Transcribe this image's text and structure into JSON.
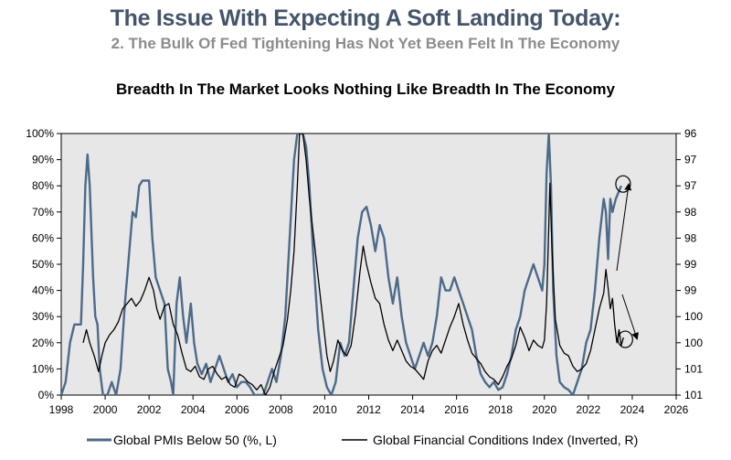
{
  "header": {
    "title": "The Issue With Expecting A Soft Landing Today:",
    "subtitle": "2. The Bulk Of Fed Tightening Has Not Yet Been Felt In The Economy"
  },
  "colors": {
    "pmi": "#4d6a8a",
    "fci": "#000000",
    "plot_bg": "#e7e7e7",
    "title": "#44546a",
    "subtitle": "#8c8c8c"
  },
  "chart_data": {
    "type": "line",
    "title": "Breadth In The Market Looks Nothing Like Breadth In The Economy",
    "x_ticks": [
      "1998",
      "2000",
      "2002",
      "2004",
      "2006",
      "2008",
      "2010",
      "2012",
      "2014",
      "2016",
      "2018",
      "2020",
      "2022",
      "2024",
      "2026"
    ],
    "xlim": [
      1998,
      2026
    ],
    "y_left_ticks": [
      "0%",
      "10%",
      "20%",
      "30%",
      "40%",
      "50%",
      "60%",
      "70%",
      "80%",
      "90%",
      "100%"
    ],
    "ylim_left": [
      0,
      100
    ],
    "y_right_ticks": [
      "101",
      "101",
      "100",
      "100",
      "99",
      "99",
      "98",
      "98",
      "97",
      "97",
      "96"
    ],
    "ylim_right_inverted": [
      101.25,
      96.25
    ],
    "series": [
      {
        "name": "Global PMIs Below 50 (%, L)",
        "axis": "left",
        "points": [
          [
            1998.0,
            0
          ],
          [
            1998.2,
            5
          ],
          [
            1998.4,
            20
          ],
          [
            1998.6,
            27
          ],
          [
            1998.9,
            27
          ],
          [
            1999.0,
            50
          ],
          [
            1999.1,
            80
          ],
          [
            1999.2,
            92
          ],
          [
            1999.3,
            80
          ],
          [
            1999.45,
            45
          ],
          [
            1999.55,
            30
          ],
          [
            1999.65,
            27
          ],
          [
            1999.75,
            10
          ],
          [
            1999.9,
            0
          ],
          [
            2000.1,
            0
          ],
          [
            2000.3,
            5
          ],
          [
            2000.5,
            0
          ],
          [
            2000.7,
            10
          ],
          [
            2000.9,
            35
          ],
          [
            2001.1,
            55
          ],
          [
            2001.25,
            70
          ],
          [
            2001.4,
            68
          ],
          [
            2001.55,
            80
          ],
          [
            2001.7,
            82
          ],
          [
            2002.0,
            82
          ],
          [
            2002.15,
            60
          ],
          [
            2002.3,
            45
          ],
          [
            2002.5,
            40
          ],
          [
            2002.7,
            35
          ],
          [
            2002.85,
            10
          ],
          [
            2003.0,
            5
          ],
          [
            2003.1,
            0
          ],
          [
            2003.25,
            35
          ],
          [
            2003.4,
            45
          ],
          [
            2003.55,
            30
          ],
          [
            2003.7,
            20
          ],
          [
            2003.9,
            35
          ],
          [
            2004.05,
            20
          ],
          [
            2004.2,
            12
          ],
          [
            2004.4,
            8
          ],
          [
            2004.6,
            12
          ],
          [
            2004.8,
            5
          ],
          [
            2005.0,
            10
          ],
          [
            2005.2,
            15
          ],
          [
            2005.4,
            10
          ],
          [
            2005.6,
            5
          ],
          [
            2005.8,
            8
          ],
          [
            2006.0,
            3
          ],
          [
            2006.2,
            5
          ],
          [
            2006.4,
            5
          ],
          [
            2006.6,
            3
          ],
          [
            2006.8,
            0
          ],
          [
            2007.0,
            0
          ],
          [
            2007.2,
            0
          ],
          [
            2007.4,
            5
          ],
          [
            2007.6,
            10
          ],
          [
            2007.8,
            5
          ],
          [
            2008.0,
            15
          ],
          [
            2008.2,
            30
          ],
          [
            2008.4,
            60
          ],
          [
            2008.6,
            90
          ],
          [
            2008.75,
            100
          ],
          [
            2009.0,
            100
          ],
          [
            2009.15,
            95
          ],
          [
            2009.3,
            80
          ],
          [
            2009.5,
            50
          ],
          [
            2009.7,
            25
          ],
          [
            2009.9,
            10
          ],
          [
            2010.1,
            3
          ],
          [
            2010.3,
            0
          ],
          [
            2010.5,
            5
          ],
          [
            2010.7,
            20
          ],
          [
            2010.9,
            15
          ],
          [
            2011.1,
            20
          ],
          [
            2011.3,
            40
          ],
          [
            2011.5,
            60
          ],
          [
            2011.7,
            70
          ],
          [
            2011.9,
            72
          ],
          [
            2012.1,
            65
          ],
          [
            2012.3,
            55
          ],
          [
            2012.5,
            65
          ],
          [
            2012.7,
            60
          ],
          [
            2012.9,
            45
          ],
          [
            2013.1,
            35
          ],
          [
            2013.3,
            45
          ],
          [
            2013.5,
            30
          ],
          [
            2013.7,
            20
          ],
          [
            2013.9,
            15
          ],
          [
            2014.1,
            10
          ],
          [
            2014.3,
            15
          ],
          [
            2014.5,
            20
          ],
          [
            2014.7,
            15
          ],
          [
            2014.9,
            20
          ],
          [
            2015.1,
            30
          ],
          [
            2015.3,
            45
          ],
          [
            2015.5,
            40
          ],
          [
            2015.7,
            40
          ],
          [
            2015.9,
            45
          ],
          [
            2016.1,
            40
          ],
          [
            2016.3,
            35
          ],
          [
            2016.5,
            30
          ],
          [
            2016.7,
            25
          ],
          [
            2016.9,
            15
          ],
          [
            2017.1,
            8
          ],
          [
            2017.3,
            5
          ],
          [
            2017.5,
            3
          ],
          [
            2017.7,
            5
          ],
          [
            2017.9,
            2
          ],
          [
            2018.1,
            3
          ],
          [
            2018.3,
            8
          ],
          [
            2018.5,
            15
          ],
          [
            2018.7,
            25
          ],
          [
            2018.9,
            30
          ],
          [
            2019.1,
            40
          ],
          [
            2019.3,
            45
          ],
          [
            2019.5,
            50
          ],
          [
            2019.7,
            45
          ],
          [
            2019.9,
            40
          ],
          [
            2020.0,
            50
          ],
          [
            2020.1,
            85
          ],
          [
            2020.2,
            100
          ],
          [
            2020.3,
            80
          ],
          [
            2020.4,
            40
          ],
          [
            2020.55,
            15
          ],
          [
            2020.7,
            5
          ],
          [
            2020.9,
            3
          ],
          [
            2021.1,
            2
          ],
          [
            2021.3,
            0
          ],
          [
            2021.5,
            5
          ],
          [
            2021.7,
            10
          ],
          [
            2021.9,
            20
          ],
          [
            2022.1,
            25
          ],
          [
            2022.3,
            40
          ],
          [
            2022.5,
            60
          ],
          [
            2022.7,
            75
          ],
          [
            2022.8,
            70
          ],
          [
            2022.9,
            52
          ],
          [
            2023.0,
            75
          ],
          [
            2023.1,
            70
          ],
          [
            2023.25,
            75
          ],
          [
            2023.4,
            78
          ],
          [
            2023.5,
            80
          ]
        ]
      },
      {
        "name": "Global Financial Conditions Index (Inverted, R)",
        "axis": "right",
        "points": [
          [
            1999.0,
            100.25
          ],
          [
            1999.15,
            100.0
          ],
          [
            1999.3,
            100.25
          ],
          [
            1999.5,
            100.5
          ],
          [
            1999.7,
            100.8
          ],
          [
            1999.85,
            100.5
          ],
          [
            2000.0,
            100.25
          ],
          [
            2000.2,
            100.1
          ],
          [
            2000.4,
            100.0
          ],
          [
            2000.6,
            99.85
          ],
          [
            2000.8,
            99.6
          ],
          [
            2001.0,
            99.5
          ],
          [
            2001.2,
            99.4
          ],
          [
            2001.4,
            99.55
          ],
          [
            2001.6,
            99.45
          ],
          [
            2001.8,
            99.25
          ],
          [
            2002.0,
            99.0
          ],
          [
            2002.2,
            99.25
          ],
          [
            2002.35,
            99.6
          ],
          [
            2002.5,
            99.8
          ],
          [
            2002.7,
            99.55
          ],
          [
            2002.9,
            99.5
          ],
          [
            2003.1,
            99.9
          ],
          [
            2003.3,
            100.1
          ],
          [
            2003.5,
            100.45
          ],
          [
            2003.7,
            100.75
          ],
          [
            2003.9,
            100.8
          ],
          [
            2004.1,
            100.7
          ],
          [
            2004.3,
            100.9
          ],
          [
            2004.5,
            100.95
          ],
          [
            2004.7,
            100.75
          ],
          [
            2004.9,
            100.7
          ],
          [
            2005.1,
            100.85
          ],
          [
            2005.3,
            100.95
          ],
          [
            2005.5,
            100.9
          ],
          [
            2005.7,
            101.05
          ],
          [
            2005.9,
            101.1
          ],
          [
            2006.1,
            100.85
          ],
          [
            2006.3,
            100.9
          ],
          [
            2006.5,
            101.0
          ],
          [
            2006.7,
            101.05
          ],
          [
            2006.9,
            101.15
          ],
          [
            2007.1,
            101.05
          ],
          [
            2007.3,
            101.25
          ],
          [
            2007.5,
            101.1
          ],
          [
            2007.7,
            100.8
          ],
          [
            2007.9,
            100.55
          ],
          [
            2008.1,
            100.3
          ],
          [
            2008.3,
            99.8
          ],
          [
            2008.45,
            99.25
          ],
          [
            2008.6,
            98.5
          ],
          [
            2008.75,
            97.25
          ],
          [
            2008.85,
            96.25
          ],
          [
            2009.0,
            96.25
          ],
          [
            2009.15,
            96.75
          ],
          [
            2009.3,
            97.5
          ],
          [
            2009.5,
            98.25
          ],
          [
            2009.7,
            99.0
          ],
          [
            2009.9,
            99.75
          ],
          [
            2010.1,
            100.5
          ],
          [
            2010.25,
            100.8
          ],
          [
            2010.4,
            100.6
          ],
          [
            2010.6,
            100.2
          ],
          [
            2010.8,
            100.4
          ],
          [
            2011.0,
            100.5
          ],
          [
            2011.2,
            100.3
          ],
          [
            2011.4,
            99.7
          ],
          [
            2011.6,
            98.9
          ],
          [
            2011.75,
            98.4
          ],
          [
            2011.9,
            98.75
          ],
          [
            2012.1,
            99.1
          ],
          [
            2012.3,
            99.4
          ],
          [
            2012.5,
            99.5
          ],
          [
            2012.7,
            99.9
          ],
          [
            2012.9,
            100.2
          ],
          [
            2013.1,
            100.4
          ],
          [
            2013.3,
            100.2
          ],
          [
            2013.5,
            100.4
          ],
          [
            2013.7,
            100.6
          ],
          [
            2013.9,
            100.7
          ],
          [
            2014.1,
            100.75
          ],
          [
            2014.3,
            100.85
          ],
          [
            2014.5,
            100.95
          ],
          [
            2014.7,
            100.6
          ],
          [
            2014.9,
            100.4
          ],
          [
            2015.1,
            100.3
          ],
          [
            2015.3,
            100.45
          ],
          [
            2015.5,
            100.2
          ],
          [
            2015.7,
            99.95
          ],
          [
            2015.9,
            99.75
          ],
          [
            2016.1,
            99.5
          ],
          [
            2016.3,
            99.9
          ],
          [
            2016.5,
            100.2
          ],
          [
            2016.7,
            100.45
          ],
          [
            2016.9,
            100.55
          ],
          [
            2017.1,
            100.65
          ],
          [
            2017.3,
            100.8
          ],
          [
            2017.5,
            100.9
          ],
          [
            2017.7,
            100.95
          ],
          [
            2017.9,
            101.05
          ],
          [
            2018.1,
            100.9
          ],
          [
            2018.3,
            100.7
          ],
          [
            2018.5,
            100.55
          ],
          [
            2018.7,
            100.3
          ],
          [
            2018.9,
            99.95
          ],
          [
            2019.1,
            100.15
          ],
          [
            2019.3,
            100.4
          ],
          [
            2019.5,
            100.2
          ],
          [
            2019.7,
            100.3
          ],
          [
            2019.9,
            100.35
          ],
          [
            2020.0,
            100.2
          ],
          [
            2020.1,
            99.5
          ],
          [
            2020.2,
            98.0
          ],
          [
            2020.25,
            97.2
          ],
          [
            2020.35,
            98.5
          ],
          [
            2020.5,
            99.8
          ],
          [
            2020.7,
            100.3
          ],
          [
            2020.9,
            100.45
          ],
          [
            2021.1,
            100.5
          ],
          [
            2021.3,
            100.7
          ],
          [
            2021.5,
            100.8
          ],
          [
            2021.7,
            100.75
          ],
          [
            2021.9,
            100.65
          ],
          [
            2022.1,
            100.4
          ],
          [
            2022.3,
            100.0
          ],
          [
            2022.5,
            99.6
          ],
          [
            2022.7,
            99.3
          ],
          [
            2022.8,
            98.85
          ],
          [
            2022.9,
            99.2
          ],
          [
            2023.0,
            99.6
          ],
          [
            2023.1,
            99.4
          ],
          [
            2023.2,
            99.9
          ],
          [
            2023.3,
            100.25
          ],
          [
            2023.4,
            100.0
          ],
          [
            2023.5,
            100.3
          ],
          [
            2023.6,
            100.15
          ]
        ]
      }
    ]
  },
  "legend": {
    "pmi_label": "Global PMIs Below 50 (%, L)",
    "fci_label": "Global Financial Conditions Index (Inverted, R)"
  }
}
